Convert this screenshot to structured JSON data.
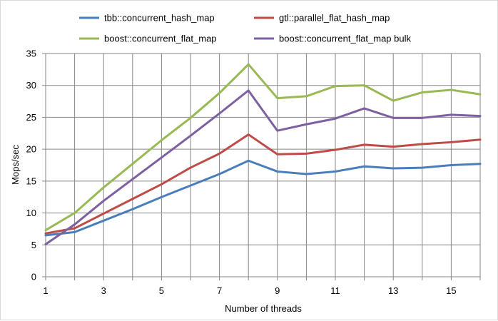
{
  "chart_data": {
    "type": "line",
    "title": "",
    "xlabel": "Number of threads",
    "ylabel": "Mops/sec",
    "xlim": [
      1,
      16
    ],
    "ylim": [
      0,
      35
    ],
    "x_ticks": [
      1,
      3,
      5,
      7,
      9,
      11,
      13,
      15
    ],
    "y_ticks": [
      0,
      5,
      10,
      15,
      20,
      25,
      30,
      35
    ],
    "grid": {
      "vertical": true,
      "horizontal": true
    },
    "legend_position": "top",
    "x": [
      1,
      2,
      3,
      4,
      5,
      6,
      7,
      8,
      9,
      10,
      11,
      12,
      13,
      14,
      15,
      16
    ],
    "series": [
      {
        "name": "tbb::concurrent_hash_map",
        "color": "#4a7ebb",
        "values": [
          6.5,
          7.0,
          8.8,
          10.6,
          12.5,
          14.3,
          16.1,
          18.2,
          16.5,
          16.1,
          16.5,
          17.3,
          17.0,
          17.1,
          17.5,
          17.7
        ]
      },
      {
        "name": "gtl::parallel_flat_hash_map",
        "color": "#be4b48",
        "values": [
          6.8,
          7.6,
          9.9,
          12.2,
          14.5,
          17.1,
          19.3,
          22.3,
          19.2,
          19.3,
          19.9,
          20.7,
          20.4,
          20.8,
          21.1,
          21.5
        ]
      },
      {
        "name": "boost::concurrent_flat_map",
        "color": "#98b954",
        "values": [
          7.3,
          10.0,
          14.0,
          17.7,
          21.4,
          24.9,
          28.8,
          33.3,
          28.0,
          28.3,
          29.9,
          30.0,
          27.6,
          28.9,
          29.3,
          28.6
        ]
      },
      {
        "name": "boost::concurrent_flat_map bulk",
        "color": "#7d60a0",
        "values": [
          5.1,
          8.2,
          11.9,
          15.3,
          18.7,
          22.1,
          25.6,
          29.2,
          22.9,
          23.9,
          24.8,
          26.4,
          24.9,
          24.9,
          25.4,
          25.2
        ]
      }
    ],
    "axis_color": "#868686",
    "grid_color": "#868686"
  }
}
